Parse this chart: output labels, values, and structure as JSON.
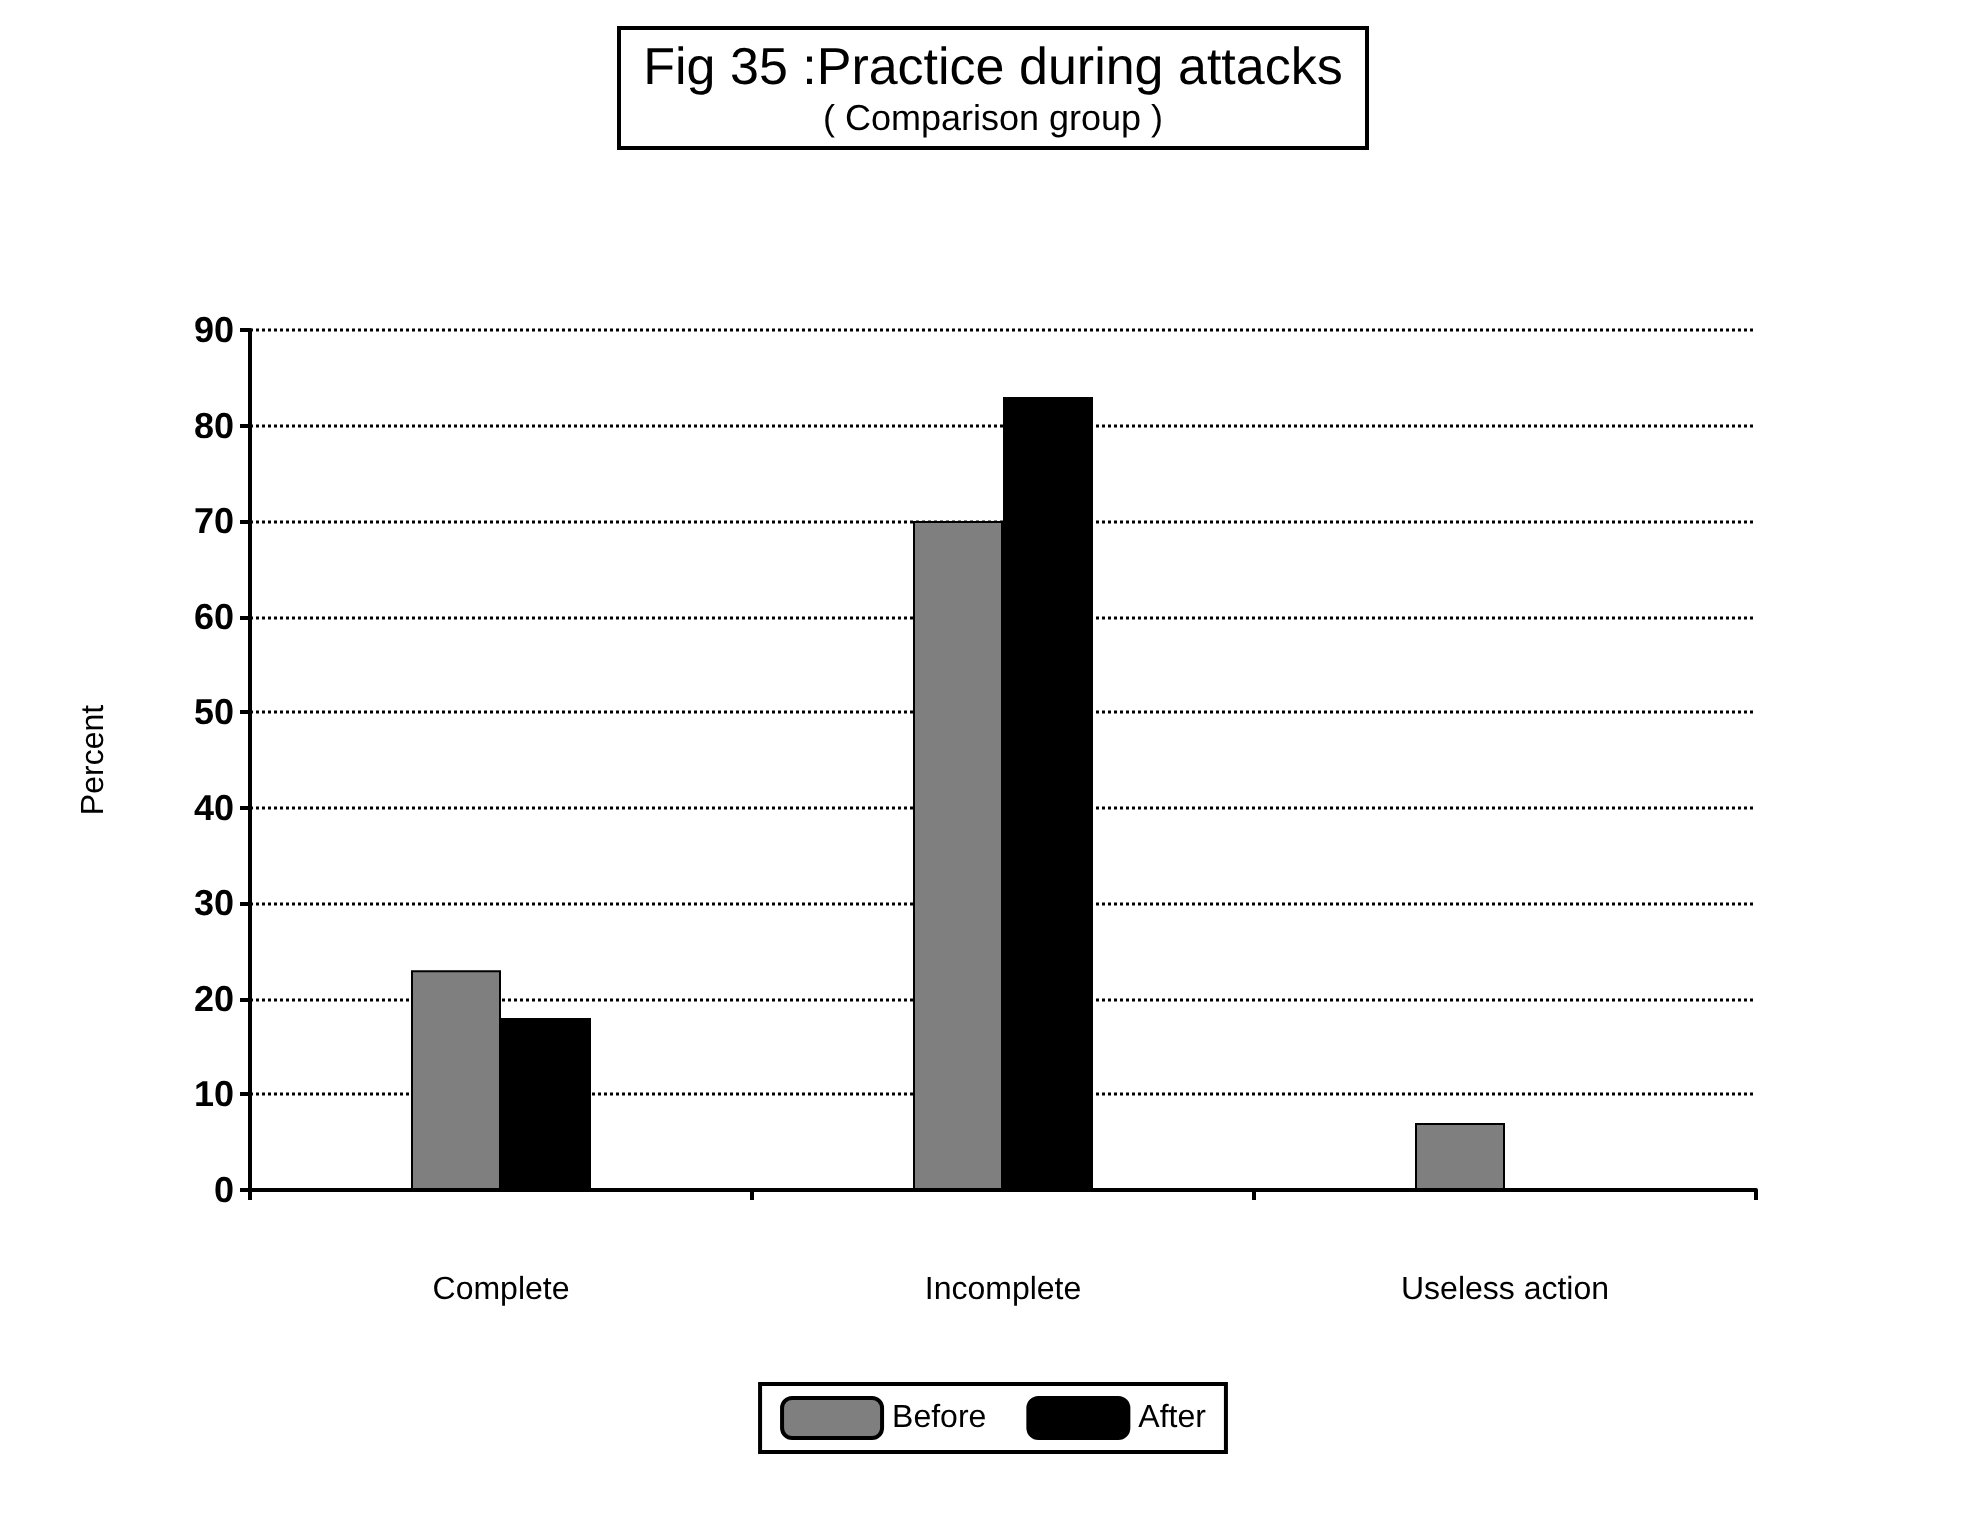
{
  "chart_data": {
    "type": "bar",
    "title": "Fig 35 :Practice during attacks",
    "subtitle": "( Comparison group )",
    "ylabel": "Percent",
    "categories": [
      "Complete",
      "Incomplete",
      "Useless action"
    ],
    "series": [
      {
        "name": "Before",
        "color": "#7f7f7f",
        "values": [
          23,
          70,
          7
        ]
      },
      {
        "name": "After",
        "color": "#000000",
        "values": [
          18,
          83,
          0
        ]
      }
    ],
    "ylim": [
      0,
      90
    ],
    "yticks": [
      0,
      10,
      20,
      30,
      40,
      50,
      60,
      70,
      80,
      90
    ],
    "grid": "y",
    "legend": "bottom"
  }
}
